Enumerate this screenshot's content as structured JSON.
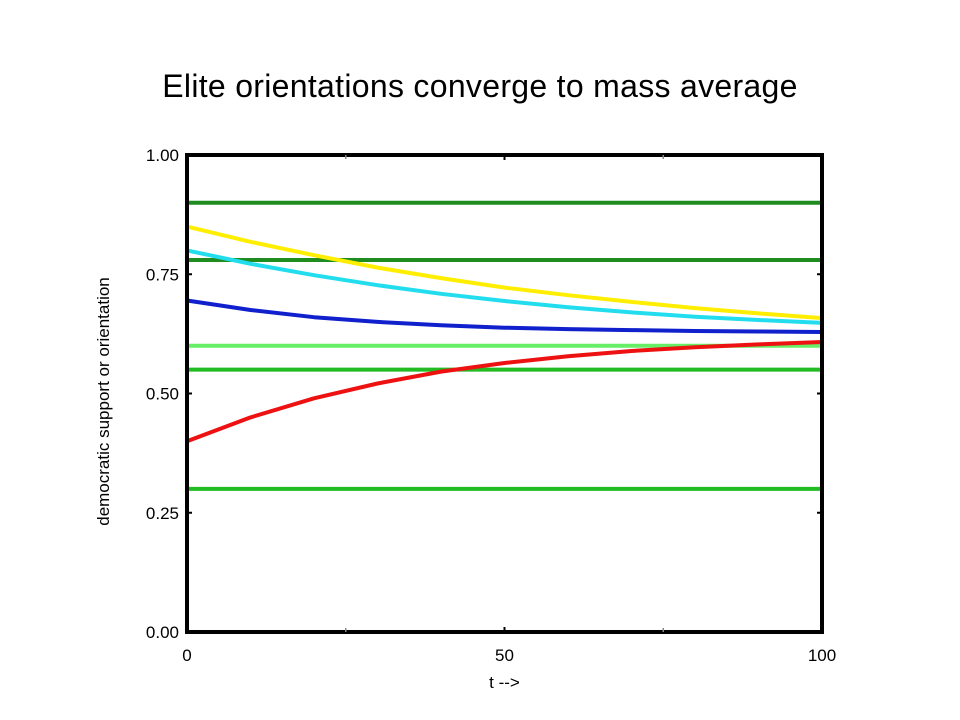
{
  "title": "Elite orientations converge to mass average",
  "chart_data": {
    "type": "line",
    "xlabel": "t -->",
    "ylabel": "democratic support or orientation",
    "xlim": [
      0,
      100
    ],
    "ylim": [
      0,
      1
    ],
    "x_ticks": [
      0,
      50,
      100
    ],
    "x_tick_labels": [
      "0",
      "50",
      "100"
    ],
    "y_ticks": [
      0,
      0.25,
      0.5,
      0.75,
      1.0
    ],
    "y_tick_labels": [
      "0.00",
      "0.25",
      "0.50",
      "0.75",
      "1.00"
    ],
    "x_minor_ticks": [
      25,
      75
    ],
    "grid": false,
    "horizontal_lines": [
      {
        "y": 0.9,
        "color": "#1e8c1e"
      },
      {
        "y": 0.78,
        "color": "#1e8c1e"
      },
      {
        "y": 0.6,
        "color": "#66ee66"
      },
      {
        "y": 0.55,
        "color": "#22bb22"
      },
      {
        "y": 0.3,
        "color": "#22bb22"
      }
    ],
    "series": [
      {
        "color": "#ffee00",
        "x": [
          0,
          10,
          20,
          30,
          40,
          50,
          60,
          70,
          80,
          90,
          100
        ],
        "y": [
          0.85,
          0.818,
          0.79,
          0.764,
          0.742,
          0.722,
          0.706,
          0.692,
          0.679,
          0.668,
          0.658
        ]
      },
      {
        "color": "#22ddee",
        "x": [
          0,
          10,
          20,
          30,
          40,
          50,
          60,
          70,
          80,
          90,
          100
        ],
        "y": [
          0.8,
          0.772,
          0.748,
          0.727,
          0.709,
          0.694,
          0.681,
          0.67,
          0.661,
          0.654,
          0.648
        ]
      },
      {
        "color": "#1020cc",
        "x": [
          0,
          10,
          20,
          30,
          40,
          50,
          60,
          70,
          80,
          90,
          100
        ],
        "y": [
          0.695,
          0.675,
          0.66,
          0.65,
          0.643,
          0.638,
          0.635,
          0.633,
          0.631,
          0.63,
          0.629
        ]
      },
      {
        "color": "#ee1111",
        "x": [
          0,
          10,
          20,
          30,
          40,
          50,
          60,
          70,
          80,
          90,
          100
        ],
        "y": [
          0.4,
          0.45,
          0.49,
          0.521,
          0.546,
          0.564,
          0.578,
          0.589,
          0.597,
          0.603,
          0.608
        ]
      }
    ]
  }
}
